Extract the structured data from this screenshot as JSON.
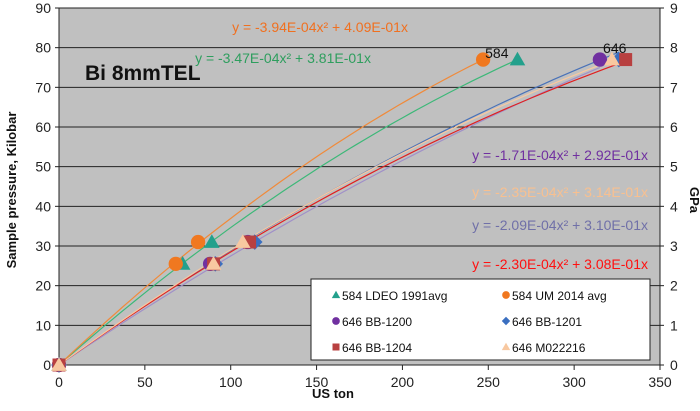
{
  "chart_data": {
    "type": "scatter",
    "title": "Bi 8mmTEL",
    "xlabel": "US ton",
    "ylabel": "Sample pressure, Kilobar",
    "y2label": "GPa",
    "xlim": [
      0,
      350
    ],
    "ylim": [
      0,
      90
    ],
    "y2lim": [
      0,
      9
    ],
    "xticks": [
      "0",
      "50",
      "100",
      "150",
      "200",
      "250",
      "300",
      "350"
    ],
    "yticks": [
      "0",
      "10",
      "20",
      "30",
      "40",
      "50",
      "60",
      "70",
      "80",
      "90"
    ],
    "y2ticks": [
      "0",
      "1",
      "2",
      "3",
      "4",
      "5",
      "6",
      "7",
      "8",
      "9"
    ],
    "grid": "horizontal",
    "legend_position": "bottom-right",
    "annotations": [
      {
        "text": "584",
        "x": 247,
        "y": 77
      },
      {
        "text": "646",
        "x": 318,
        "y": 77
      }
    ],
    "series": [
      {
        "name": "584 LDEO 1991avg",
        "marker": "triangle",
        "color": "#23a08c",
        "line_color": "#3cb878",
        "x": [
          0,
          72,
          89,
          267
        ],
        "y": [
          0,
          25.5,
          31,
          77
        ],
        "trend": {
          "a": -0.000347,
          "b": 0.381,
          "label": "y = -3.47E-04x² + 3.81E-01x",
          "label_color": "#2e9e5e"
        }
      },
      {
        "name": "584 UM 2014 avg",
        "marker": "circle",
        "color": "#f07820",
        "line_color": "#f08a3a",
        "x": [
          0,
          68,
          81,
          247
        ],
        "y": [
          0,
          25.5,
          31,
          77
        ],
        "trend": {
          "a": -0.000394,
          "b": 0.409,
          "label": "y = -3.94E-04x² + 4.09E-01x",
          "label_color": "#f07020"
        }
      },
      {
        "name": "646 BB-1200",
        "marker": "circle",
        "color": "#7030a0",
        "line_color": "#a090c8",
        "x": [
          0,
          88,
          110,
          315
        ],
        "y": [
          0,
          25.5,
          31,
          77
        ],
        "trend": {
          "a": -0.000171,
          "b": 0.292,
          "label": "y = -1.71E-04x² + 2.92E-01x",
          "label_color": "#7030a0"
        }
      },
      {
        "name": "646 BB-1201",
        "marker": "diamond",
        "color": "#3a6fc0",
        "line_color": "#4a72b8",
        "x": [
          0,
          91,
          114,
          326
        ],
        "y": [
          0,
          25.5,
          31,
          77
        ],
        "trend": {
          "a": -0.000209,
          "b": 0.31,
          "label": "y = -2.09E-04x² + 3.10E-01x",
          "label_color": "#7070a8"
        }
      },
      {
        "name": "646 BB-1204",
        "marker": "square",
        "color": "#b84040",
        "line_color": "#e02020",
        "x": [
          0,
          90,
          111,
          330
        ],
        "y": [
          0,
          25.5,
          31,
          77
        ],
        "trend": {
          "a": -0.00023,
          "b": 0.308,
          "label": "y = -2.30E-04x² + 3.08E-01x",
          "label_color": "#ff1010"
        }
      },
      {
        "name": "646 M022216",
        "marker": "triangle",
        "color": "#f8c8a0",
        "line_color": "#f8c8a0",
        "x": [
          0,
          90,
          107,
          322
        ],
        "y": [
          0,
          25.5,
          31,
          77
        ],
        "trend": {
          "a": -0.000235,
          "b": 0.314,
          "label": "y = -2.35E-04x² + 3.14E-01x",
          "label_color": "#f8c090"
        }
      }
    ]
  },
  "colors": {
    "plot_bg": "#c0c0c0",
    "gridline": "#222222"
  }
}
